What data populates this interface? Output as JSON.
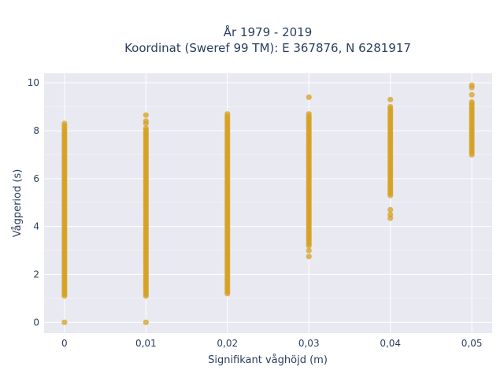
{
  "chart_data": {
    "type": "scatter",
    "title_lines": [
      "År 1979 - 2019",
      "Koordinat (Sweref 99 TM): E 367876, N 6281917"
    ],
    "xlabel": "Signifikant våghöjd (m)",
    "ylabel": "Vågperiod (s)",
    "x_ticks": [
      0,
      0.01,
      0.02,
      0.03,
      0.04,
      0.05
    ],
    "x_tick_labels": [
      "0",
      "0,01",
      "0,02",
      "0,03",
      "0,04",
      "0,05"
    ],
    "y_ticks": [
      0,
      2,
      4,
      6,
      8,
      10
    ],
    "y_tick_labels": [
      "0",
      "2",
      "4",
      "6",
      "8",
      "10"
    ],
    "xlim": [
      -0.0025,
      0.0525
    ],
    "ylim": [
      -0.45,
      10.4
    ],
    "grid": true,
    "marker_color": "#D4A020",
    "plot_background": "#E9E9F1",
    "series": [
      {
        "x_values": [
          0,
          0.01,
          0.02,
          0.03,
          0.04,
          0.05
        ],
        "ranges": [
          {
            "x": 0,
            "y_min": 1.1,
            "y_max": 8.1
          },
          {
            "x": 0.01,
            "y_min": 1.1,
            "y_max": 8.1
          },
          {
            "x": 0.02,
            "y_min": 1.2,
            "y_max": 8.6
          },
          {
            "x": 0.03,
            "y_min": 3.2,
            "y_max": 8.6
          },
          {
            "x": 0.04,
            "y_min": 5.3,
            "y_max": 9.0
          },
          {
            "x": 0.05,
            "y_min": 7.0,
            "y_max": 9.2
          }
        ],
        "points": [
          {
            "x": 0,
            "y": 0
          },
          {
            "x": 0,
            "y": 8.2
          },
          {
            "x": 0,
            "y": 8.3
          },
          {
            "x": 0.01,
            "y": 0
          },
          {
            "x": 0.01,
            "y": 8.3
          },
          {
            "x": 0.01,
            "y": 8.4
          },
          {
            "x": 0.01,
            "y": 8.65
          },
          {
            "x": 0.02,
            "y": 8.7
          },
          {
            "x": 0.03,
            "y": 2.75
          },
          {
            "x": 0.03,
            "y": 3.0
          },
          {
            "x": 0.03,
            "y": 8.7
          },
          {
            "x": 0.03,
            "y": 9.4
          },
          {
            "x": 0.04,
            "y": 4.35
          },
          {
            "x": 0.04,
            "y": 4.5
          },
          {
            "x": 0.04,
            "y": 4.7
          },
          {
            "x": 0.04,
            "y": 9.3
          },
          {
            "x": 0.05,
            "y": 9.5
          },
          {
            "x": 0.05,
            "y": 9.8
          },
          {
            "x": 0.05,
            "y": 9.9
          }
        ]
      }
    ]
  }
}
